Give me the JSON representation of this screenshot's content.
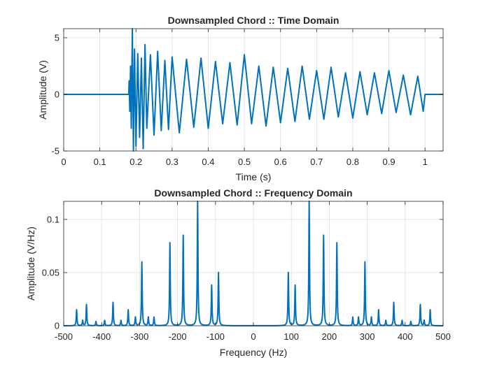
{
  "chart_data": [
    {
      "type": "line",
      "title": "Downsampled Chord :: Time Domain",
      "xlabel": "Time (s)",
      "ylabel": "Amplitude (V)",
      "xlim": [
        0,
        1.05
      ],
      "ylim": [
        -5,
        5.8
      ],
      "xticks": [
        "0",
        "0.1",
        "0.2",
        "0.3",
        "0.4",
        "0.5",
        "0.6",
        "0.7",
        "0.8",
        "0.9",
        "1"
      ],
      "yticks": [
        "-5",
        "0",
        "5"
      ],
      "grid": true,
      "line_color": "#0072BD",
      "series": [
        {
          "x": [
            0,
            0.18,
            0.181,
            0.183,
            0.185,
            0.187,
            0.19,
            0.193,
            0.196,
            0.2,
            0.205,
            0.21,
            0.215,
            0.22,
            0.225,
            0.23,
            0.24,
            0.25,
            0.26,
            0.27,
            0.28,
            0.29,
            0.3,
            0.32,
            0.34,
            0.36,
            0.38,
            0.4,
            0.42,
            0.44,
            0.46,
            0.48,
            0.5,
            0.52,
            0.54,
            0.56,
            0.58,
            0.6,
            0.62,
            0.64,
            0.66,
            0.68,
            0.7,
            0.72,
            0.74,
            0.76,
            0.78,
            0.8,
            0.82,
            0.84,
            0.86,
            0.88,
            0.9,
            0.92,
            0.94,
            0.96,
            0.98,
            0.995,
            1.0,
            1.05
          ],
          "y": [
            0,
            0,
            1.2,
            -1.5,
            2.5,
            -3,
            5.8,
            -5,
            4,
            -4.6,
            3.6,
            -3.8,
            3.2,
            -4.8,
            4.4,
            -3,
            3.5,
            -3.6,
            3.8,
            -3.2,
            3,
            -3.1,
            3.3,
            -3.4,
            3.1,
            -2.9,
            3.2,
            -3,
            2.9,
            -2.6,
            2.8,
            -2.7,
            3.5,
            -2.6,
            2.5,
            -2.8,
            2.4,
            -2.5,
            2.3,
            -2.4,
            2.5,
            -2.2,
            2.1,
            -2.2,
            2.4,
            -2,
            1.9,
            -2.1,
            2,
            -1.8,
            1.9,
            -1.7,
            2.1,
            -1.6,
            1.7,
            -1.8,
            1.6,
            -1.5,
            0,
            0
          ]
        }
      ]
    },
    {
      "type": "line",
      "title": "Downsampled Chord :: Frequency Domain",
      "xlabel": "Frequency (Hz)",
      "ylabel": "Amplitude (V/Hz)",
      "xlim": [
        -500,
        500
      ],
      "ylim": [
        0,
        0.117
      ],
      "xticks": [
        "-500",
        "-400",
        "-300",
        "-200",
        "-100",
        "0",
        "100",
        "200",
        "300",
        "400",
        "500"
      ],
      "yticks": [
        "0",
        "0.05",
        "0.1"
      ],
      "grid": true,
      "line_color": "#0072BD",
      "peaks": [
        {
          "f": -466,
          "a": 0.015
        },
        {
          "f": -450,
          "a": 0.005
        },
        {
          "f": -440,
          "a": 0.02
        },
        {
          "f": -415,
          "a": 0.004
        },
        {
          "f": -392,
          "a": 0.005
        },
        {
          "f": -370,
          "a": 0.022
        },
        {
          "f": -349,
          "a": 0.005
        },
        {
          "f": -330,
          "a": 0.015
        },
        {
          "f": -311,
          "a": 0.008
        },
        {
          "f": -294,
          "a": 0.06
        },
        {
          "f": -277,
          "a": 0.008
        },
        {
          "f": -262,
          "a": 0.008
        },
        {
          "f": -220,
          "a": 0.078
        },
        {
          "f": -185,
          "a": 0.085
        },
        {
          "f": -147,
          "a": 0.117
        },
        {
          "f": -110,
          "a": 0.038
        },
        {
          "f": -92,
          "a": 0.05
        },
        {
          "f": 92,
          "a": 0.05
        },
        {
          "f": 110,
          "a": 0.038
        },
        {
          "f": 147,
          "a": 0.117
        },
        {
          "f": 185,
          "a": 0.085
        },
        {
          "f": 220,
          "a": 0.078
        },
        {
          "f": 262,
          "a": 0.008
        },
        {
          "f": 277,
          "a": 0.008
        },
        {
          "f": 294,
          "a": 0.06
        },
        {
          "f": 311,
          "a": 0.008
        },
        {
          "f": 330,
          "a": 0.015
        },
        {
          "f": 349,
          "a": 0.005
        },
        {
          "f": 370,
          "a": 0.022
        },
        {
          "f": 392,
          "a": 0.005
        },
        {
          "f": 415,
          "a": 0.004
        },
        {
          "f": 440,
          "a": 0.02
        },
        {
          "f": 450,
          "a": 0.005
        },
        {
          "f": 466,
          "a": 0.015
        }
      ]
    }
  ]
}
